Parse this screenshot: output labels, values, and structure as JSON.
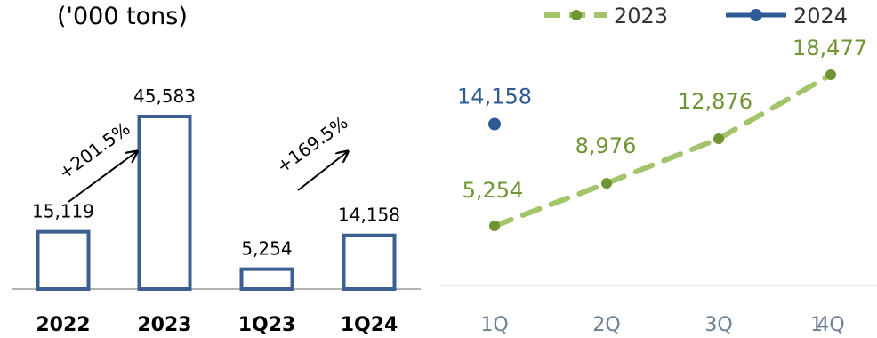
{
  "unit_label": "('000 tons)",
  "colors": {
    "bar_stroke": "#3b5f91",
    "s2023": "#a3c46b",
    "s2023_text": "#6e9433",
    "s2024": "#2f5b95",
    "axis": "#9a9a9a",
    "text": "#000000",
    "qtick": "#6f7f94"
  },
  "chart_data": [
    {
      "type": "bar",
      "categories": [
        "2022",
        "2023",
        "1Q23",
        "1Q24"
      ],
      "values": [
        15119,
        45583,
        5254,
        14158
      ],
      "value_labels": [
        "15,119",
        "45,583",
        "5,254",
        "14,158"
      ],
      "annotations": [
        "+201.5%",
        "+169.5%"
      ],
      "ylim": [
        0,
        45583
      ]
    },
    {
      "type": "line",
      "categories": [
        "1Q",
        "2Q",
        "3Q",
        "4Q"
      ],
      "overlay_text": "1",
      "series": [
        {
          "name": "2023",
          "values": [
            5254,
            8976,
            12876,
            18477
          ],
          "labels": [
            "5,254",
            "8,976",
            "12,876",
            "18,477"
          ],
          "style": "dashed"
        },
        {
          "name": "2024",
          "values": [
            14158,
            null,
            null,
            null
          ],
          "labels": [
            "14,158"
          ],
          "style": "solid"
        }
      ],
      "legend": "top-right",
      "ylim": [
        0,
        18477
      ]
    }
  ]
}
